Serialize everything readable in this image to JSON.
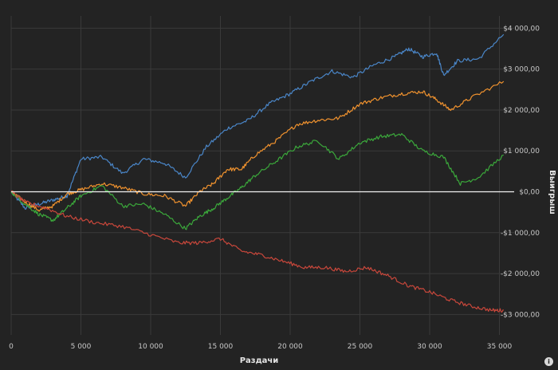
{
  "chart_data": {
    "type": "line",
    "title": "",
    "xlabel": "Раздачи",
    "ylabel": "Выигрыш",
    "xlim": [
      0,
      35600
    ],
    "ylim": [
      -3500,
      4300
    ],
    "x_ticks": [
      0,
      5000,
      10000,
      15000,
      20000,
      25000,
      30000,
      35000
    ],
    "x_tick_labels": [
      "0",
      "5 000",
      "10 000",
      "15 000",
      "20 000",
      "25 000",
      "30 000",
      "35 000"
    ],
    "y_ticks": [
      4000,
      3000,
      2000,
      1000,
      0,
      -1000,
      -2000,
      -3000
    ],
    "y_tick_labels": [
      "$4 000,00",
      "$3 000,00",
      "$2 000,00",
      "$1 000,00",
      "$0,00",
      "-$1 000,00",
      "-$2 000,00",
      "-$3 000,00"
    ],
    "grid": true,
    "zero_line": true,
    "series": [
      {
        "color": "#4a86c8",
        "x": [
          0,
          1000,
          2000,
          3000,
          4000,
          5000,
          6500,
          8000,
          9500,
          11000,
          12500,
          14000,
          15500,
          17000,
          18500,
          20000,
          21500,
          23000,
          24500,
          26000,
          27500,
          28500,
          29500,
          30500,
          31000,
          32000,
          33500,
          35300
        ],
        "y": [
          0,
          -400,
          -300,
          -200,
          -100,
          800,
          850,
          450,
          800,
          700,
          350,
          1100,
          1550,
          1750,
          2150,
          2400,
          2700,
          2950,
          2800,
          3100,
          3300,
          3500,
          3300,
          3400,
          2850,
          3200,
          3250,
          3850
        ]
      },
      {
        "color": "#f0922e",
        "x": [
          0,
          1000,
          2000,
          3000,
          4000,
          5000,
          6500,
          8000,
          9500,
          11000,
          12500,
          13500,
          14500,
          15500,
          16500,
          17500,
          19000,
          20500,
          22000,
          23500,
          25000,
          26500,
          28000,
          29500,
          30500,
          31500,
          33000,
          35300
        ],
        "y": [
          0,
          -250,
          -450,
          -350,
          -50,
          50,
          200,
          100,
          -50,
          -100,
          -350,
          0,
          200,
          550,
          550,
          900,
          1250,
          1650,
          1750,
          1800,
          2150,
          2300,
          2400,
          2450,
          2250,
          2000,
          2300,
          2700
        ]
      },
      {
        "color": "#3ba83b",
        "x": [
          0,
          1000,
          2000,
          3000,
          4000,
          5000,
          6500,
          8000,
          9500,
          11000,
          12500,
          13500,
          14500,
          15500,
          16500,
          17500,
          19000,
          20500,
          22000,
          23500,
          25000,
          26500,
          28000,
          29500,
          31000,
          32200,
          33500,
          35300
        ],
        "y": [
          0,
          -300,
          -550,
          -700,
          -400,
          -100,
          150,
          -350,
          -300,
          -550,
          -900,
          -600,
          -400,
          -150,
          100,
          400,
          750,
          1100,
          1250,
          800,
          1200,
          1350,
          1400,
          1000,
          850,
          200,
          350,
          900
        ]
      },
      {
        "color": "#c8473b",
        "x": [
          0,
          1000,
          2500,
          4000,
          6000,
          8000,
          10000,
          12000,
          13500,
          15000,
          16500,
          18000,
          19500,
          21000,
          22500,
          24000,
          25500,
          27000,
          28500,
          30000,
          31500,
          33000,
          34500,
          35300
        ],
        "y": [
          0,
          -250,
          -400,
          -600,
          -750,
          -850,
          -1050,
          -1250,
          -1250,
          -1150,
          -1450,
          -1550,
          -1700,
          -1850,
          -1850,
          -1950,
          -1850,
          -2050,
          -2300,
          -2450,
          -2650,
          -2800,
          -2900,
          -2900
        ]
      }
    ]
  }
}
